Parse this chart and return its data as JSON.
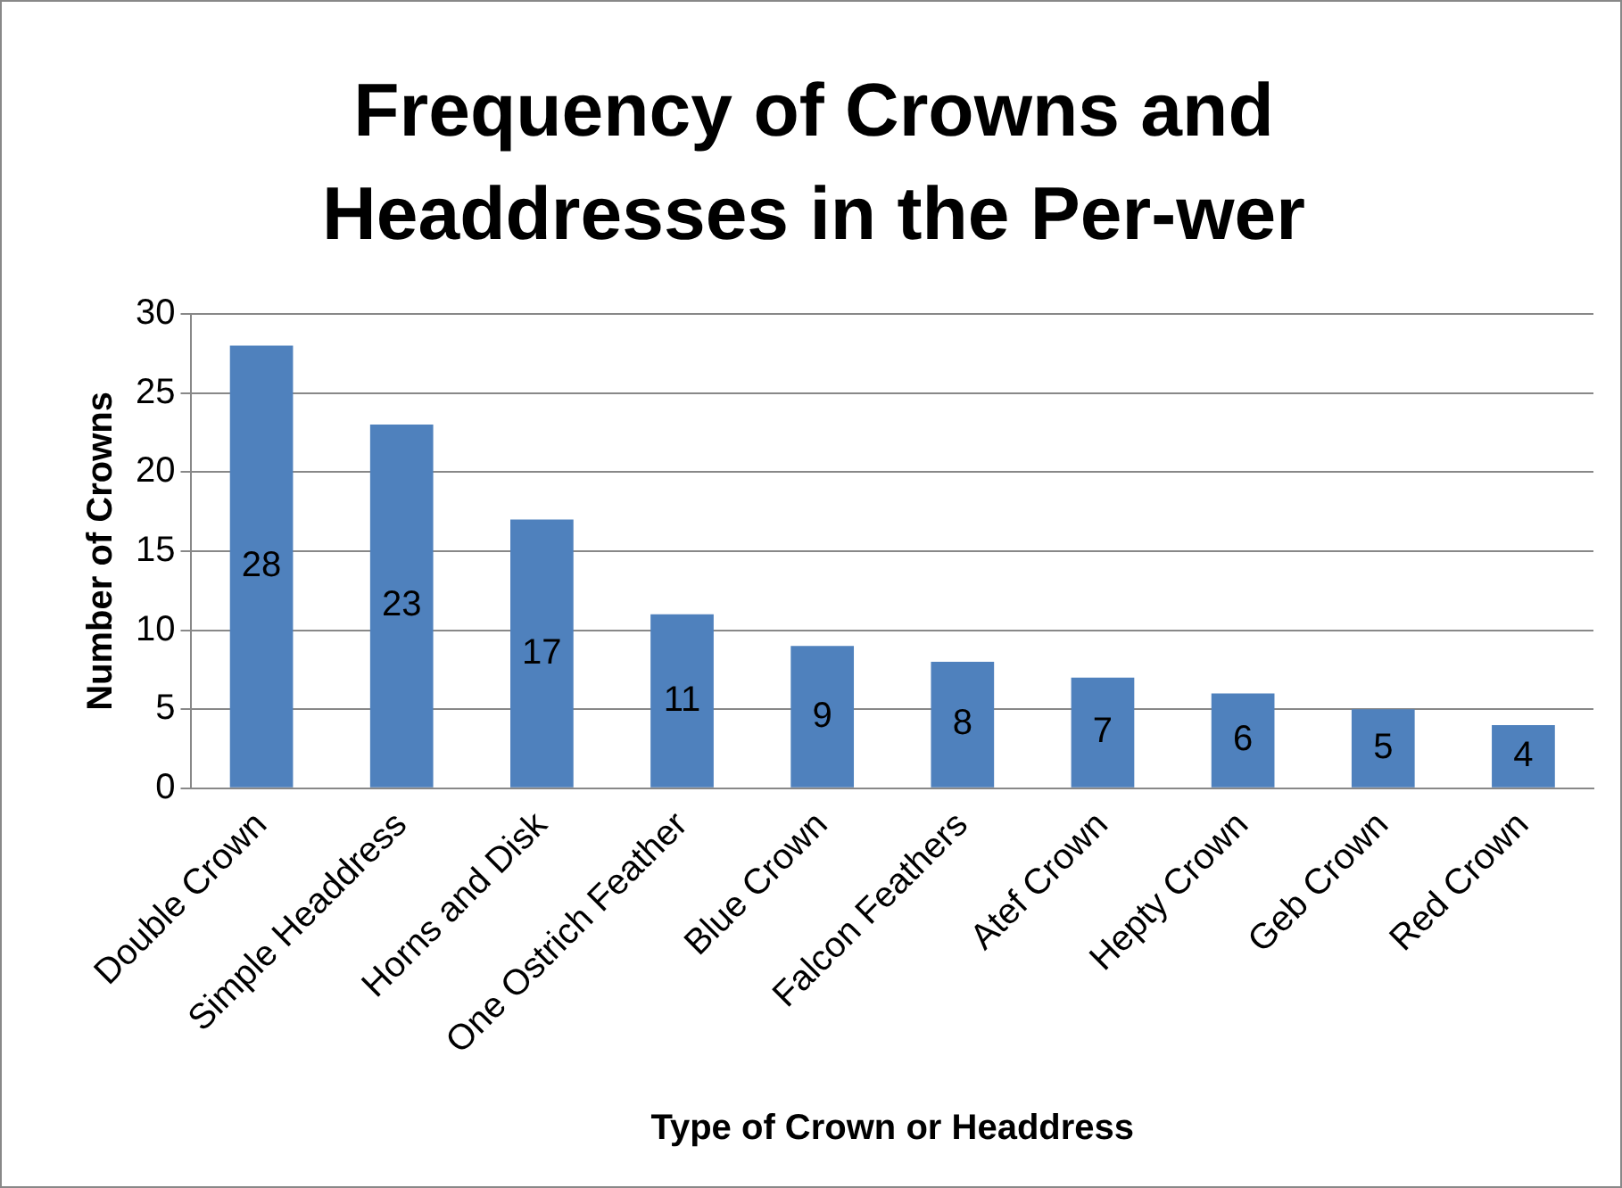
{
  "chart_data": {
    "type": "bar",
    "title": "Frequency of Crowns and Headdresses in the Per-wer",
    "xlabel": "Type of Crown or Headdress",
    "ylabel": "Number of Crowns",
    "categories": [
      "Double Crown",
      "Simple Headdress",
      "Horns and Disk",
      "One Ostrich Feather",
      "Blue Crown",
      "Falcon Feathers",
      "Atef Crown",
      "Hepty Crown",
      "Geb Crown",
      "Red Crown"
    ],
    "values": [
      28,
      23,
      17,
      11,
      9,
      8,
      7,
      6,
      5,
      4
    ],
    "color": "#4f81bd",
    "ylim": [
      0,
      30
    ],
    "yticks": [
      0,
      5,
      10,
      15,
      20,
      25,
      30
    ],
    "grid": "y",
    "data_labels": true,
    "legend": false
  }
}
